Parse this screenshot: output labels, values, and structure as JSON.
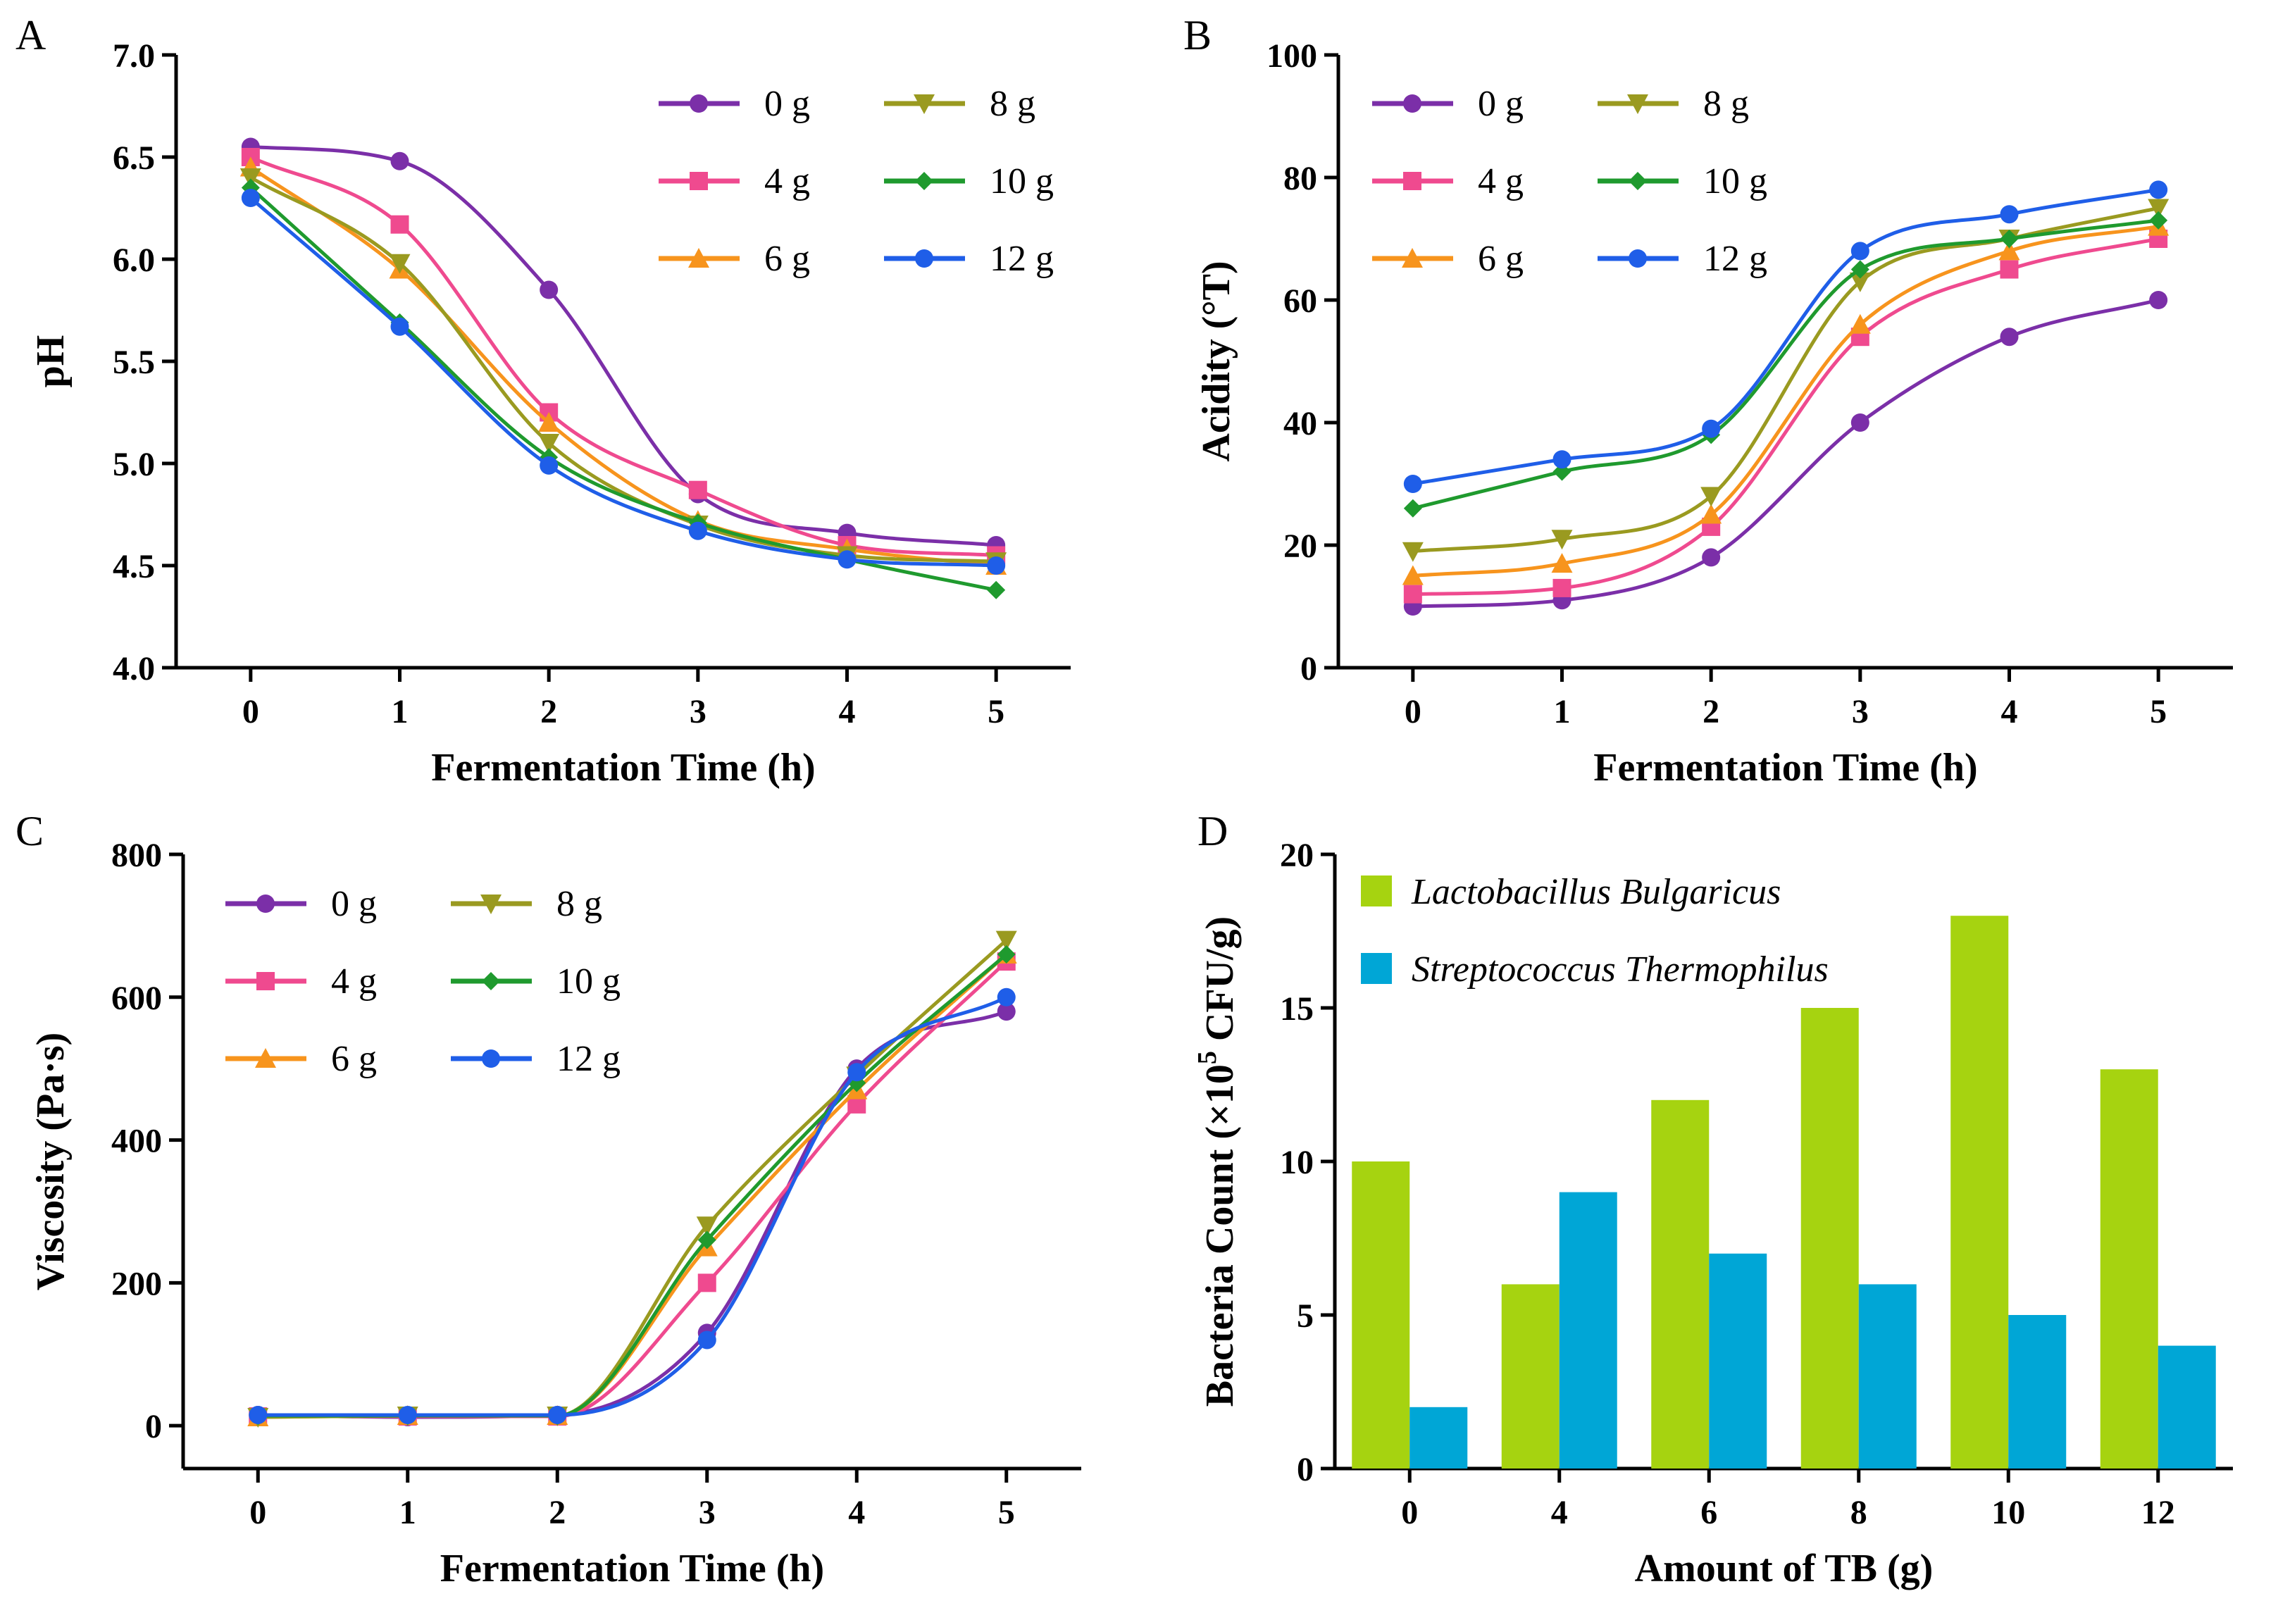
{
  "chart_data": [
    {
      "panel": "A",
      "type": "line",
      "xlabel": "Fermentation Time (h)",
      "ylabel": "pH",
      "xlim": [
        -0.5,
        5.5
      ],
      "ylim": [
        4.0,
        7.0
      ],
      "xticks": [
        0,
        1,
        2,
        3,
        4,
        5
      ],
      "yticks": [
        4.0,
        4.5,
        5.0,
        5.5,
        6.0,
        6.5,
        7.0
      ],
      "ytick_labels": [
        "4.0",
        "4.5",
        "5.0",
        "5.5",
        "6.0",
        "6.5",
        "7.0"
      ],
      "legend_position": "top-right",
      "x": [
        0,
        1,
        2,
        3,
        4,
        5
      ],
      "series": [
        {
          "name": "0 g",
          "values": [
            6.55,
            6.48,
            5.85,
            4.85,
            4.66,
            4.6
          ]
        },
        {
          "name": "4 g",
          "values": [
            6.5,
            6.17,
            5.25,
            4.87,
            4.6,
            4.55
          ]
        },
        {
          "name": "6 g",
          "values": [
            6.45,
            5.95,
            5.2,
            4.72,
            4.58,
            4.5
          ]
        },
        {
          "name": "8 g",
          "values": [
            6.4,
            5.98,
            5.1,
            4.7,
            4.55,
            4.52
          ]
        },
        {
          "name": "10 g",
          "values": [
            6.35,
            5.69,
            5.03,
            4.71,
            4.53,
            4.38
          ]
        },
        {
          "name": "12 g",
          "values": [
            6.3,
            5.67,
            4.99,
            4.67,
            4.53,
            4.5
          ]
        }
      ]
    },
    {
      "panel": "B",
      "type": "line",
      "xlabel": "Fermentation Time (h)",
      "ylabel": "Acidity (°T)",
      "xlim": [
        -0.5,
        5.5
      ],
      "ylim": [
        0,
        100
      ],
      "xticks": [
        0,
        1,
        2,
        3,
        4,
        5
      ],
      "yticks": [
        0,
        20,
        40,
        60,
        80,
        100
      ],
      "ytick_labels": [
        "0",
        "20",
        "40",
        "60",
        "80",
        "100"
      ],
      "legend_position": "top-left",
      "x": [
        0,
        1,
        2,
        3,
        4,
        5
      ],
      "series": [
        {
          "name": "0 g",
          "values": [
            10,
            11,
            18,
            40,
            54,
            60
          ]
        },
        {
          "name": "4 g",
          "values": [
            12,
            13,
            23,
            54,
            65,
            70
          ]
        },
        {
          "name": "6 g",
          "values": [
            15,
            17,
            25,
            56,
            68,
            72
          ]
        },
        {
          "name": "8 g",
          "values": [
            19,
            21,
            28,
            63,
            70,
            75
          ]
        },
        {
          "name": "10 g",
          "values": [
            26,
            32,
            38,
            65,
            70,
            73
          ]
        },
        {
          "name": "12 g",
          "values": [
            30,
            34,
            39,
            68,
            74,
            78
          ]
        }
      ]
    },
    {
      "panel": "C",
      "type": "line",
      "xlabel": "Fermentation Time (h)",
      "ylabel": "Viscosity (Pa·s)",
      "xlim": [
        -0.5,
        5.5
      ],
      "ylim": [
        -60,
        800
      ],
      "xticks": [
        0,
        1,
        2,
        3,
        4,
        5
      ],
      "yticks": [
        0,
        200,
        400,
        600,
        800
      ],
      "ytick_labels": [
        "0",
        "200",
        "400",
        "600",
        "800"
      ],
      "legend_position": "top-left",
      "x": [
        0,
        1,
        2,
        3,
        4,
        5
      ],
      "series": [
        {
          "name": "0 g",
          "values": [
            15,
            12,
            15,
            130,
            500,
            580
          ]
        },
        {
          "name": "4 g",
          "values": [
            13,
            13,
            13,
            200,
            450,
            650
          ]
        },
        {
          "name": "6 g",
          "values": [
            12,
            14,
            14,
            250,
            470,
            660
          ]
        },
        {
          "name": "8 g",
          "values": [
            12,
            14,
            14,
            280,
            490,
            680
          ]
        },
        {
          "name": "10 g",
          "values": [
            14,
            14,
            14,
            260,
            480,
            660
          ]
        },
        {
          "name": "12 g",
          "values": [
            15,
            15,
            15,
            120,
            495,
            600
          ]
        }
      ]
    },
    {
      "panel": "D",
      "type": "bar",
      "xlabel": "Amount of TB (g)",
      "ylabel_main": "Bacteria Count (×10",
      "ylabel_sup": "5",
      "ylabel_tail": " CFU/g)",
      "ylim": [
        0,
        20
      ],
      "yticks": [
        0,
        5,
        10,
        15,
        20
      ],
      "ytick_labels": [
        "0",
        "5",
        "10",
        "15",
        "20"
      ],
      "legend_position": "top-left",
      "categories": [
        "0",
        "4",
        "6",
        "8",
        "10",
        "12"
      ],
      "series": [
        {
          "name": "Lactobacillus Bulgaricus",
          "values": [
            10,
            6,
            12,
            15,
            18,
            13
          ]
        },
        {
          "name": "Streptococcus Thermophilus",
          "values": [
            2,
            9,
            7,
            6,
            5,
            4
          ]
        }
      ]
    }
  ],
  "panel_letters": [
    "A",
    "B",
    "C",
    "D"
  ],
  "colors": {
    "0 g": "#7b2fa8",
    "4 g": "#ef4a8f",
    "6 g": "#f7941d",
    "8 g": "#9a9a20",
    "10 g": "#1f9a2e",
    "12 g": "#1f5ee8",
    "bar1": "#a6d310",
    "bar2": "#00a6d6"
  },
  "markers": {
    "0 g": "circle",
    "4 g": "square",
    "6 g": "triangle-up",
    "8 g": "triangle-down",
    "10 g": "diamond",
    "12 g": "circle"
  }
}
